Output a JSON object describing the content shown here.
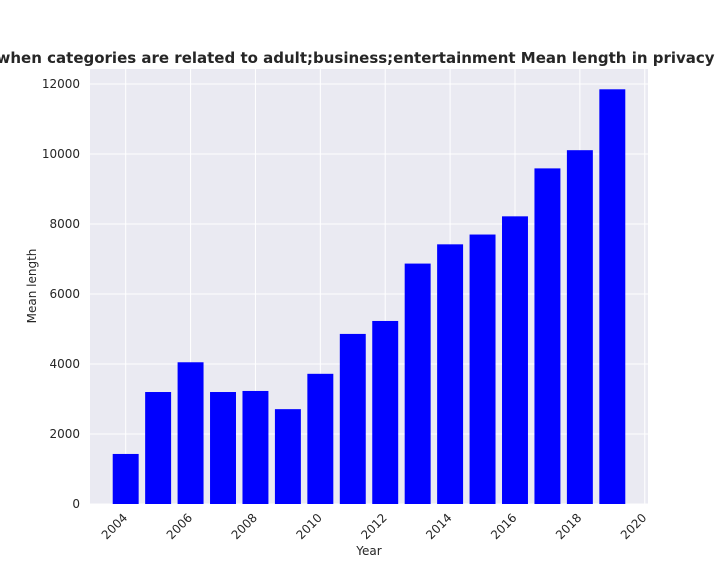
{
  "chart_data": {
    "type": "bar",
    "title": "Mean length when categories are related to adult;business;entertainment Mean length in privacy policies by Year",
    "xlabel": "Year",
    "ylabel": "Mean length",
    "x": [
      2004,
      2005,
      2006,
      2007,
      2008,
      2009,
      2010,
      2011,
      2012,
      2013,
      2014,
      2015,
      2016,
      2017,
      2018,
      2019
    ],
    "values": [
      1430,
      3200,
      4050,
      3200,
      3230,
      2710,
      3720,
      4860,
      5230,
      6870,
      7420,
      7700,
      8220,
      9590,
      10110,
      11850
    ],
    "xlim": [
      2002.9,
      2020.1
    ],
    "ylim": [
      0,
      12430
    ],
    "xticks": [
      2004,
      2006,
      2008,
      2010,
      2012,
      2014,
      2016,
      2018,
      2020
    ],
    "yticks": [
      0,
      2000,
      4000,
      6000,
      8000,
      10000,
      12000
    ],
    "bar_color": "#0000ff",
    "background_color": "#eaeaf2",
    "grid_color": "#ffffff",
    "grid": true
  }
}
